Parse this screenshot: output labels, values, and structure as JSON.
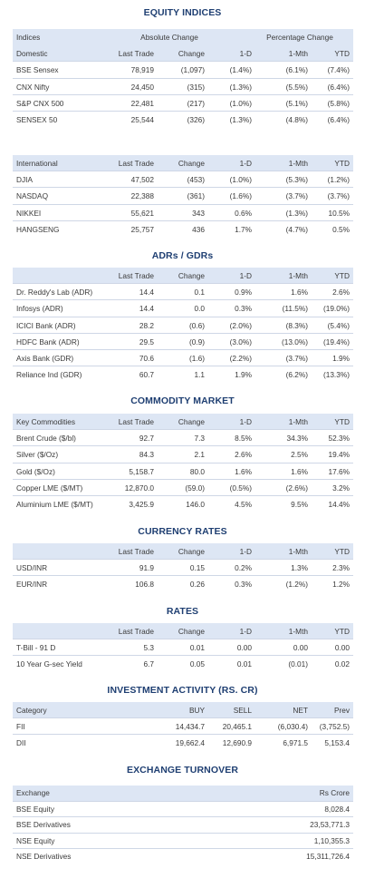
{
  "equity_indices": {
    "title": "EQUITY INDICES",
    "group_row": {
      "label": "Indices",
      "abs_change": "Absolute Change",
      "pct_change": "Percentage Change"
    },
    "header": [
      "Domestic",
      "Last Trade",
      "Change",
      "1-D",
      "1-Mth",
      "YTD"
    ],
    "rows": [
      [
        "BSE Sensex",
        "78,919",
        "(1,097)",
        "(1.4%)",
        "(6.1%)",
        "(7.4%)"
      ],
      [
        "CNX Nifty",
        "24,450",
        "(315)",
        "(1.3%)",
        "(5.5%)",
        "(6.4%)"
      ],
      [
        "S&P CNX 500",
        "22,481",
        "(217)",
        "(1.0%)",
        "(5.1%)",
        "(5.8%)"
      ],
      [
        "SENSEX 50",
        "25,544",
        "(326)",
        "(1.3%)",
        "(4.8%)",
        "(6.4%)"
      ]
    ]
  },
  "international": {
    "header": [
      "International",
      "Last Trade",
      "Change",
      "1-D",
      "1-Mth",
      "YTD"
    ],
    "rows": [
      [
        "DJIA",
        "47,502",
        "(453)",
        "(1.0%)",
        "(5.3%)",
        "(1.2%)"
      ],
      [
        "NASDAQ",
        "22,388",
        "(361)",
        "(1.6%)",
        "(3.7%)",
        "(3.7%)"
      ],
      [
        "NIKKEI",
        "55,621",
        "343",
        "0.6%",
        "(1.3%)",
        "10.5%"
      ],
      [
        "HANGSENG",
        "25,757",
        "436",
        "1.7%",
        "(4.7%)",
        "0.5%"
      ]
    ]
  },
  "adrs": {
    "title": "ADRs / GDRs",
    "header": [
      "",
      "Last Trade",
      "Change",
      "1-D",
      "1-Mth",
      "YTD"
    ],
    "rows": [
      [
        "Dr. Reddy's Lab (ADR)",
        "14.4",
        "0.1",
        "0.9%",
        "1.6%",
        "2.6%"
      ],
      [
        "Infosys (ADR)",
        "14.4",
        "0.0",
        "0.3%",
        "(11.5%)",
        "(19.0%)"
      ],
      [
        "ICICI Bank (ADR)",
        "28.2",
        "(0.6)",
        "(2.0%)",
        "(8.3%)",
        "(5.4%)"
      ],
      [
        "HDFC Bank (ADR)",
        "29.5",
        "(0.9)",
        "(3.0%)",
        "(13.0%)",
        "(19.4%)"
      ],
      [
        "Axis Bank (GDR)",
        "70.6",
        "(1.6)",
        "(2.2%)",
        "(3.7%)",
        "1.9%"
      ],
      [
        "Reliance Ind (GDR)",
        "60.7",
        "1.1",
        "1.9%",
        "(6.2%)",
        "(13.3%)"
      ]
    ]
  },
  "commodity": {
    "title": "COMMODITY MARKET",
    "header": [
      "Key Commodities",
      "Last Trade",
      "Change",
      "1-D",
      "1-Mth",
      "YTD"
    ],
    "rows": [
      [
        "Brent Crude ($/bl)",
        "92.7",
        "7.3",
        "8.5%",
        "34.3%",
        "52.3%"
      ],
      [
        "Silver ($/Oz)",
        "84.3",
        "2.1",
        "2.6%",
        "2.5%",
        "19.4%"
      ],
      [
        "Gold ($/Oz)",
        "5,158.7",
        "80.0",
        "1.6%",
        "1.6%",
        "17.6%"
      ],
      [
        "Copper LME ($/MT)",
        "12,870.0",
        "(59.0)",
        "(0.5%)",
        "(2.6%)",
        "3.2%"
      ],
      [
        "Aluminium LME ($/MT)",
        "3,425.9",
        "146.0",
        "4.5%",
        "9.5%",
        "14.4%"
      ]
    ]
  },
  "currency": {
    "title": "CURRENCY RATES",
    "header": [
      "",
      "Last Trade",
      "Change",
      "1-D",
      "1-Mth",
      "YTD"
    ],
    "rows": [
      [
        "USD/INR",
        "91.9",
        "0.15",
        "0.2%",
        "1.3%",
        "2.3%"
      ],
      [
        "EUR/INR",
        "106.8",
        "0.26",
        "0.3%",
        "(1.2%)",
        "1.2%"
      ]
    ]
  },
  "rates": {
    "title": "RATES",
    "header": [
      "",
      "Last Trade",
      "Change",
      "1-D",
      "1-Mth",
      "YTD"
    ],
    "rows": [
      [
        "T-Bill - 91 D",
        "5.3",
        "0.01",
        "0.00",
        "0.00",
        "0.00"
      ],
      [
        "10 Year G-sec Yield",
        "6.7",
        "0.05",
        "0.01",
        "(0.01)",
        "0.02"
      ]
    ]
  },
  "investment": {
    "title": "INVESTMENT ACTIVITY (RS. CR)",
    "header": [
      "Category",
      "BUY",
      "SELL",
      "NET",
      "Prev"
    ],
    "rows": [
      [
        "FII",
        "14,434.7",
        "20,465.1",
        "(6,030.4)",
        "(3,752.5)"
      ],
      [
        "DII",
        "19,662.4",
        "12,690.9",
        "6,971.5",
        "5,153.4"
      ]
    ]
  },
  "turnover": {
    "title": "EXCHANGE TURNOVER",
    "header": [
      "Exchange",
      "Rs Crore"
    ],
    "rows": [
      [
        "BSE Equity",
        "8,028.4"
      ],
      [
        "BSE Derivatives",
        "23,53,771.3"
      ],
      [
        "NSE Equity",
        "1,10,355.3"
      ],
      [
        "NSE Derivatives",
        "15,311,726.4"
      ]
    ]
  },
  "colors": {
    "title": "#1f3f72",
    "header_band": "#dde6f4",
    "rule": "#cfd7e6"
  }
}
